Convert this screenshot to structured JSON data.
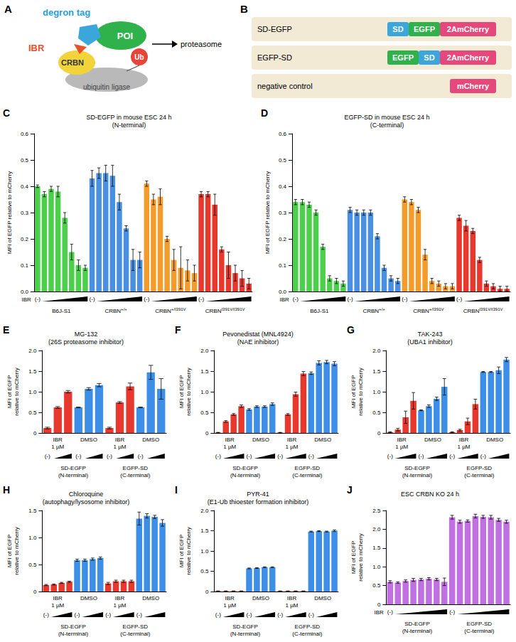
{
  "diagram_a": {
    "letter": "A",
    "tag": "degron tag",
    "drug": "IBR",
    "target": "POI",
    "adaptor": "CRBN",
    "ubiquitin": "Ub",
    "ligase": "ubiquitin ligase",
    "destination": "proteasome"
  },
  "diagram_b": {
    "letter": "B",
    "constructs": [
      {
        "name": "SD-EGFP",
        "parts": [
          {
            "text": "SD",
            "color": "#3aa6dc"
          },
          {
            "text": "EGFP",
            "color": "#2fb24c"
          },
          {
            "text": "2AmCherry",
            "color": "#e6487c"
          }
        ]
      },
      {
        "name": "EGFP-SD",
        "parts": [
          {
            "text": "EGFP",
            "color": "#2fb24c"
          },
          {
            "text": "SD",
            "color": "#3aa6dc"
          },
          {
            "text": "2AmCherry",
            "color": "#e6487c"
          }
        ]
      },
      {
        "name": "negative control",
        "parts": [
          {
            "text": "mCherry",
            "color": "#e6487c"
          }
        ]
      }
    ]
  },
  "chart_data": [
    {
      "type": "bar",
      "letter": "C",
      "title": "SD-EGFP in mouse ESC 24 h\n(N-terminal)",
      "ylabel": "MFI of EGFP relative to mCherry",
      "ylim": [
        0,
        0.6
      ],
      "yticks": [
        {
          "value": 0,
          "label": "0.0"
        },
        0.1,
        0.2,
        0.3,
        0.4,
        0.5,
        0.6
      ],
      "grid": false,
      "dose_label": "IBR",
      "untreated_label": "(-)",
      "groups": [
        {
          "name": "B6J-S1",
          "color": "#4cd04c",
          "values": [
            0.4,
            0.37,
            0.39,
            0.38,
            0.28,
            0.15,
            0.1,
            0.09
          ],
          "errors": [
            0.005,
            0.01,
            0.01,
            0.02,
            0.02,
            0.03,
            0.02,
            0.01
          ]
        },
        {
          "name": "CRBN",
          "superscript": "+/+",
          "color": "#4a90e2",
          "values": [
            0.43,
            0.45,
            0.45,
            0.44,
            0.34,
            0.24,
            0.12,
            0.12
          ],
          "errors": [
            0.03,
            0.02,
            0.03,
            0.04,
            0.03,
            0.01,
            0.04,
            0.03
          ]
        },
        {
          "name": "CRBN",
          "superscript": "+/I391V",
          "color": "#f39c2c",
          "values": [
            0.41,
            0.35,
            0.36,
            0.2,
            0.12,
            0.09,
            0.08,
            0.07
          ],
          "errors": [
            0.01,
            0.02,
            0.03,
            0.01,
            0.04,
            0.08,
            0.04,
            0.03
          ]
        },
        {
          "name": "CRBN",
          "superscript": "I391V/I391V",
          "color": "#e8382e",
          "values": [
            0.37,
            0.37,
            0.33,
            0.16,
            0.1,
            0.07,
            0.05,
            0.03
          ],
          "errors": [
            0.01,
            0.01,
            0.04,
            0.01,
            0.05,
            0.03,
            0.03,
            0.02
          ]
        }
      ]
    },
    {
      "type": "bar",
      "letter": "D",
      "title": "EGFP-SD in mouse ESC 24 h\n(C-terminal)",
      "ylabel": "MFI of EGFP relative to mCherry",
      "ylim": [
        0,
        0.6
      ],
      "yticks": [
        {
          "value": 0,
          "label": "0.0"
        },
        0.1,
        0.2,
        0.3,
        0.4,
        0.5,
        0.6
      ],
      "grid": false,
      "dose_label": "IBR",
      "untreated_label": "(-)",
      "groups": [
        {
          "name": "B6J-S1",
          "color": "#4cd04c",
          "values": [
            0.34,
            0.34,
            0.33,
            0.3,
            0.17,
            0.05,
            0.04,
            0.03
          ],
          "errors": [
            0.01,
            0.01,
            0.01,
            0.01,
            0.01,
            0.01,
            0.01,
            0.01
          ]
        },
        {
          "name": "CRBN",
          "superscript": "+/+",
          "color": "#4a90e2",
          "values": [
            0.31,
            0.3,
            0.3,
            0.3,
            0.21,
            0.09,
            0.05,
            0.04
          ],
          "errors": [
            0.01,
            0.01,
            0.01,
            0.01,
            0.01,
            0.01,
            0.01,
            0.01
          ]
        },
        {
          "name": "CRBN",
          "superscript": "+/I391V",
          "color": "#f39c2c",
          "values": [
            0.35,
            0.34,
            0.31,
            0.14,
            0.04,
            0.03,
            0.02,
            0.02
          ],
          "errors": [
            0.01,
            0.01,
            0.01,
            0.02,
            0.01,
            0.01,
            0.01,
            0.01
          ]
        },
        {
          "name": "CRBN",
          "superscript": "I391V/I391V",
          "color": "#e8382e",
          "values": [
            0.28,
            0.25,
            0.23,
            0.12,
            0.03,
            0.02,
            0.01,
            0.01
          ],
          "errors": [
            0.01,
            0.02,
            0.01,
            0.01,
            0.01,
            0.01,
            0.01,
            0.01
          ]
        }
      ]
    },
    {
      "type": "bar",
      "letter": "E",
      "title": "MG-132\n(26S proteasome inhibitor)",
      "ylabel": "MFI of EGFP relative to mCherry",
      "ylim": [
        0,
        2
      ],
      "yticks": [
        0,
        0.5,
        {
          "value": 1,
          "label": "1.0"
        },
        1.5,
        {
          "value": 2,
          "label": "2.0"
        }
      ],
      "grid": false,
      "untreated_label": "(-)",
      "constructs": [
        "SD-EGFP\n(N-terminal)",
        "EGFP-SD\n(C-terminal)"
      ],
      "groups": [
        {
          "name": "IBR\n1 µM",
          "color": "#e8382e",
          "values": [
            0.12,
            0.62,
            1.0
          ],
          "errors": [
            0.02,
            0.02,
            0.03
          ]
        },
        {
          "name": "DMSO",
          "color": "#3d8ee6",
          "values": [
            0.62,
            1.07,
            1.16
          ],
          "errors": [
            0.01,
            0.03,
            0.04
          ]
        },
        {
          "name": "IBR\n1 µM",
          "color": "#e8382e",
          "values": [
            0.12,
            0.74,
            1.13
          ],
          "errors": [
            0.02,
            0.02,
            0.08
          ]
        },
        {
          "name": "DMSO",
          "color": "#3d8ee6",
          "values": [
            0.62,
            1.47,
            1.07
          ],
          "errors": [
            0.01,
            0.17,
            0.25
          ]
        }
      ]
    },
    {
      "type": "bar",
      "letter": "F",
      "title": "Pevonedistat (MNL4924)\n(NAE inhibitor)",
      "ylabel": "MFI of EGFP relative to mCherry",
      "ylim": [
        0,
        2
      ],
      "yticks": [
        0,
        0.5,
        {
          "value": 1,
          "label": "1.0"
        },
        1.5,
        {
          "value": 2,
          "label": "2.0"
        }
      ],
      "grid": false,
      "untreated_label": "(-)",
      "constructs": [
        "SD-EGFP\n(N-terminal)",
        "EGFP-SD\n(C-terminal)"
      ],
      "groups": [
        {
          "name": "IBR\n1 µM",
          "color": "#e8382e",
          "values": [
            0.01,
            0.28,
            0.45,
            0.65
          ],
          "errors": [
            0.005,
            0.02,
            0.02,
            0.03
          ]
        },
        {
          "name": "DMSO",
          "color": "#3d8ee6",
          "values": [
            0.57,
            0.64,
            0.64,
            0.7
          ],
          "errors": [
            0.02,
            0.02,
            0.02,
            0.03
          ]
        },
        {
          "name": "IBR\n1 µM",
          "color": "#e8382e",
          "values": [
            0.01,
            0.45,
            0.94,
            1.44
          ],
          "errors": [
            0.005,
            0.02,
            0.05,
            0.05
          ]
        },
        {
          "name": "DMSO",
          "color": "#3d8ee6",
          "values": [
            1.45,
            1.7,
            1.72,
            1.68
          ],
          "errors": [
            0.03,
            0.05,
            0.04,
            0.05
          ]
        }
      ]
    },
    {
      "type": "bar",
      "letter": "G",
      "title": "TAK-243\n(UBA1 inhibitor)",
      "ylabel": "MFI of EGFP relative to mCherry",
      "ylim": [
        0,
        2
      ],
      "yticks": [
        0,
        0.5,
        {
          "value": 1,
          "label": "1.0"
        },
        1.5,
        {
          "value": 2,
          "label": "2.0"
        }
      ],
      "grid": false,
      "untreated_label": "(-)",
      "constructs": [
        "SD-EGFP\n(N-terminal)",
        "EGFP-SD\n(C-terminal)"
      ],
      "groups": [
        {
          "name": "IBR\n1 µM",
          "color": "#e8382e",
          "values": [
            0.02,
            0.08,
            0.38,
            0.78
          ],
          "errors": [
            0.01,
            0.03,
            0.15,
            0.2
          ]
        },
        {
          "name": "DMSO",
          "color": "#3d8ee6",
          "values": [
            0.55,
            0.65,
            0.83,
            1.12
          ],
          "errors": [
            0.01,
            0.03,
            0.04,
            0.2
          ]
        },
        {
          "name": "IBR\n1 µM",
          "color": "#e8382e",
          "values": [
            0.02,
            0.07,
            0.28,
            0.7
          ],
          "errors": [
            0.01,
            0.02,
            0.08,
            0.12
          ]
        },
        {
          "name": "DMSO",
          "color": "#3d8ee6",
          "values": [
            1.48,
            1.48,
            1.52,
            1.78
          ],
          "errors": [
            0.01,
            0.01,
            0.08,
            0.05
          ]
        }
      ]
    },
    {
      "type": "bar",
      "letter": "H",
      "title": "Chloroquine\n(autophagy/lysosome inhibitor)",
      "ylabel": "MFI of EGFP relative to mCherry",
      "ylim": [
        0,
        1.5
      ],
      "yticks": [
        0,
        0.5,
        {
          "value": 1,
          "label": "1.0"
        },
        1.5
      ],
      "grid": false,
      "untreated_label": "(-)",
      "constructs": [
        "SD-EGFP\n(N-terminal)",
        "EGFP-SD\n(C-terminal)"
      ],
      "groups": [
        {
          "name": "IBR\n1 µM",
          "color": "#e8382e",
          "values": [
            0.12,
            0.13,
            0.16,
            0.18
          ],
          "errors": [
            0.01,
            0.01,
            0.01,
            0.01
          ]
        },
        {
          "name": "DMSO",
          "color": "#3d8ee6",
          "values": [
            0.58,
            0.58,
            0.6,
            0.62
          ],
          "errors": [
            0.02,
            0.02,
            0.02,
            0.02
          ]
        },
        {
          "name": "IBR\n1 µM",
          "color": "#e8382e",
          "values": [
            0.15,
            0.19,
            0.19,
            0.19
          ],
          "errors": [
            0.02,
            0.02,
            0.02,
            0.02
          ]
        },
        {
          "name": "DMSO",
          "color": "#3d8ee6",
          "values": [
            1.35,
            1.4,
            1.38,
            1.27
          ],
          "errors": [
            0.12,
            0.04,
            0.03,
            0.06
          ]
        }
      ]
    },
    {
      "type": "bar",
      "letter": "I",
      "title": "PYR-41\n(E1-Ub thioester formation inhibitor)",
      "ylabel": "MFI of EGFP relative to mCherry",
      "ylim": [
        0,
        2
      ],
      "yticks": [
        0,
        0.5,
        {
          "value": 1,
          "label": "1.0"
        },
        1.5,
        {
          "value": 2,
          "label": "2.0"
        }
      ],
      "grid": false,
      "untreated_label": "(-)",
      "constructs": [
        "SD-EGFP\n(N-terminal)",
        "EGFP-SD\n(C-terminal)"
      ],
      "groups": [
        {
          "name": "IBR\n1 µM",
          "color": "#e8382e",
          "values": [
            0.01,
            0.01,
            0.01,
            0.01
          ],
          "errors": [
            0.005,
            0.005,
            0.005,
            0.005
          ]
        },
        {
          "name": "DMSO",
          "color": "#3d8ee6",
          "values": [
            0.57,
            0.58,
            0.6,
            0.6
          ],
          "errors": [
            0.01,
            0.01,
            0.01,
            0.01
          ]
        },
        {
          "name": "IBR\n1 µM",
          "color": "#e8382e",
          "values": [
            0.01,
            0.01,
            0.01,
            0.01
          ],
          "errors": [
            0.005,
            0.005,
            0.005,
            0.005
          ]
        },
        {
          "name": "DMSO",
          "color": "#3d8ee6",
          "values": [
            1.48,
            1.49,
            1.48,
            1.5
          ],
          "errors": [
            0.01,
            0.01,
            0.01,
            0.02
          ]
        }
      ]
    },
    {
      "type": "bar",
      "letter": "J",
      "title": "ESC CRBN KO 24 h",
      "ylabel": "MFI of EGFP relative to mCherry",
      "ylim": [
        0,
        2.5
      ],
      "yticks": [
        0,
        0.5,
        {
          "value": 1,
          "label": "1.0"
        },
        1.5,
        {
          "value": 2,
          "label": "2.0"
        },
        2.5
      ],
      "grid": false,
      "dose_label": "IBR",
      "untreated_label": "(-)",
      "groups": [
        {
          "name": "SD-EGFP\n(N-terminal)",
          "color": "#c070e0",
          "values": [
            0.6,
            0.58,
            0.62,
            0.65,
            0.66,
            0.68,
            0.66,
            0.6
          ],
          "errors": [
            0.03,
            0.02,
            0.03,
            0.04,
            0.03,
            0.03,
            0.03,
            0.1
          ]
        },
        {
          "name": "EGFP-SD\n(C-terminal)",
          "color": "#c070e0",
          "values": [
            2.32,
            2.2,
            2.22,
            2.35,
            2.33,
            2.32,
            2.25,
            2.2
          ],
          "errors": [
            0.05,
            0.04,
            0.03,
            0.05,
            0.04,
            0.05,
            0.04,
            0.04
          ]
        }
      ]
    }
  ]
}
